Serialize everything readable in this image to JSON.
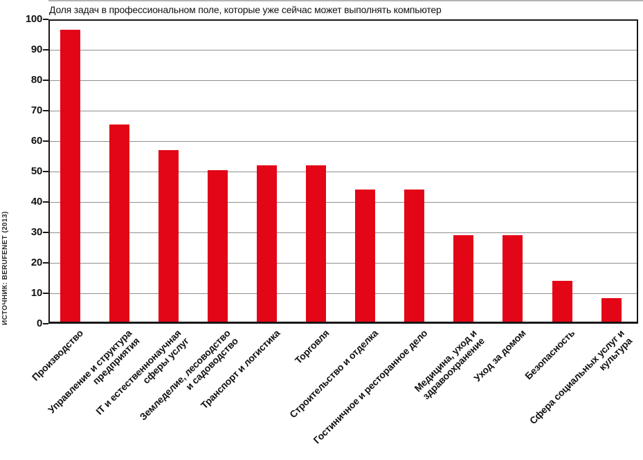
{
  "title": "Доля задач в профессиональном поле, которые уже сейчас может выполнять компьютер",
  "source_label": "ИСТОЧНИК: BERUFENET (2013)",
  "colors": {
    "bar": "#e30617",
    "gridline": "#8e8e8e",
    "axis": "#161616"
  },
  "chart_data": {
    "type": "bar",
    "title": "Доля задач в профессиональном поле, которые уже сейчас может выполнять компьютер",
    "source": "ИСТОЧНИК: BERUFENET (2013)",
    "categories": [
      "Производство",
      "Управление и структура предприятия",
      "IT и естественнонаучная сферы услуг",
      "Земледелие, лесоводство и садоводство",
      "Транспорт и логистика",
      "Торговля",
      "Строительство и отделка",
      "Гостиничное и ресторанное дело",
      "Медицина, уход и здравоохранение",
      "Уход за домом",
      "Безопасность",
      "Сфера социальных услуг и культура"
    ],
    "category_display_lines": [
      [
        "Производство"
      ],
      [
        "Управление и структура",
        "предприятия"
      ],
      [
        "IT и естественнонаучная",
        "сферы услуг"
      ],
      [
        "Земледелие, лесоводство",
        "и садоводство"
      ],
      [
        "Транспорт и логистика"
      ],
      [
        "Торговля"
      ],
      [
        "Строительство и отделка"
      ],
      [
        "Гостиничное и ресторанное дело"
      ],
      [
        "Медицина, уход и",
        "здравоохранение"
      ],
      [
        "Уход за домом"
      ],
      [
        "Безопасность"
      ],
      [
        "Сфера социальных услуг и",
        "культура"
      ]
    ],
    "values": [
      96.5,
      65.5,
      57,
      50.5,
      52,
      52,
      44,
      44,
      29,
      29,
      14,
      8.5
    ],
    "xlabel": "",
    "ylabel": "",
    "ylim": [
      0,
      100
    ],
    "yticks": [
      0,
      10,
      20,
      30,
      40,
      50,
      60,
      70,
      80,
      90,
      100
    ],
    "grid": true,
    "legend": false,
    "bar_color": "#e30617"
  }
}
